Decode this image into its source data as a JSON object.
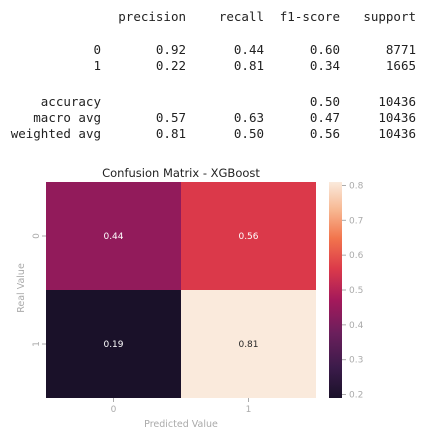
{
  "report": {
    "headers": [
      "precision",
      "recall",
      "f1-score",
      "support"
    ],
    "class_rows": [
      {
        "label": "0",
        "precision": "0.92",
        "recall": "0.44",
        "f1": "0.60",
        "support": "8771"
      },
      {
        "label": "1",
        "precision": "0.22",
        "recall": "0.81",
        "f1": "0.34",
        "support": "1665"
      }
    ],
    "summary_rows": [
      {
        "label": "accuracy",
        "precision": "",
        "recall": "",
        "f1": "0.50",
        "support": "10436"
      },
      {
        "label": "macro avg",
        "precision": "0.57",
        "recall": "0.63",
        "f1": "0.47",
        "support": "10436"
      },
      {
        "label": "weighted avg",
        "precision": "0.81",
        "recall": "0.50",
        "f1": "0.56",
        "support": "10436"
      }
    ]
  },
  "chart_data": {
    "type": "heatmap",
    "title": "Confusion Matrix - XGBoost",
    "xlabel": "Predicted Value",
    "ylabel": "Real Value",
    "x_categories": [
      "0",
      "1"
    ],
    "y_categories": [
      "0",
      "1"
    ],
    "values": [
      [
        0.44,
        0.56
      ],
      [
        0.19,
        0.81
      ]
    ],
    "annotations": [
      [
        "0.44",
        "0.56"
      ],
      [
        "0.19",
        "0.81"
      ]
    ],
    "colorbar": {
      "range": [
        0.19,
        0.81
      ],
      "ticks": [
        "0.2",
        "0.3",
        "0.4",
        "0.5",
        "0.6",
        "0.7",
        "0.8"
      ],
      "tick_values": [
        0.2,
        0.3,
        0.4,
        0.5,
        0.6,
        0.7,
        0.8
      ]
    },
    "colormap": "rocket",
    "grid": false
  }
}
